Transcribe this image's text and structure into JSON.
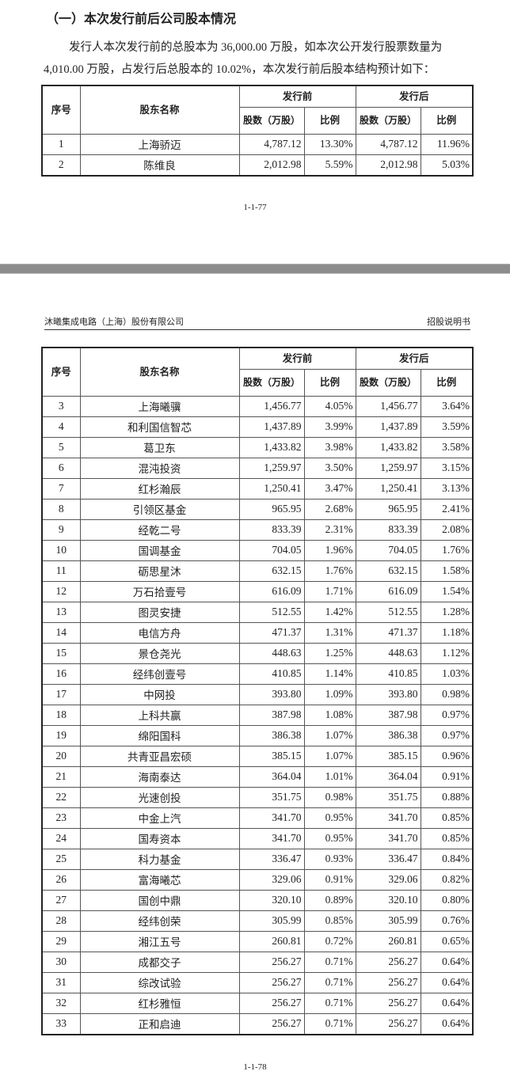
{
  "page1": {
    "section_title": "（一）本次发行前后公司股本情况",
    "paragraph_line1": "发行人本次发行前的总股本为 36,000.00 万股，如本次公开发行股票数量为",
    "paragraph_line2": "4,010.00 万股，占发行后总股本的 10.02%，本次发行前后股本结构预计如下：",
    "page_number": "1-1-77"
  },
  "page2": {
    "header_left": "沐曦集成电路（上海）股份有限公司",
    "header_right": "招股说明书",
    "page_number": "1-1-78"
  },
  "table_headers": {
    "seq": "序号",
    "name": "股东名称",
    "before": "发行前",
    "after": "发行后",
    "shares": "股数（万股）",
    "ratio": "比例"
  },
  "table1_rows": [
    [
      "1",
      "上海骄迈",
      "4,787.12",
      "13.30%",
      "4,787.12",
      "11.96%"
    ],
    [
      "2",
      "陈维良",
      "2,012.98",
      "5.59%",
      "2,012.98",
      "5.03%"
    ]
  ],
  "table2_rows": [
    [
      "3",
      "上海曦骥",
      "1,456.77",
      "4.05%",
      "1,456.77",
      "3.64%"
    ],
    [
      "4",
      "和利国信智芯",
      "1,437.89",
      "3.99%",
      "1,437.89",
      "3.59%"
    ],
    [
      "5",
      "葛卫东",
      "1,433.82",
      "3.98%",
      "1,433.82",
      "3.58%"
    ],
    [
      "6",
      "混沌投资",
      "1,259.97",
      "3.50%",
      "1,259.97",
      "3.15%"
    ],
    [
      "7",
      "红杉瀚辰",
      "1,250.41",
      "3.47%",
      "1,250.41",
      "3.13%"
    ],
    [
      "8",
      "引领区基金",
      "965.95",
      "2.68%",
      "965.95",
      "2.41%"
    ],
    [
      "9",
      "经乾二号",
      "833.39",
      "2.31%",
      "833.39",
      "2.08%"
    ],
    [
      "10",
      "国调基金",
      "704.05",
      "1.96%",
      "704.05",
      "1.76%"
    ],
    [
      "11",
      "砺思星沐",
      "632.15",
      "1.76%",
      "632.15",
      "1.58%"
    ],
    [
      "12",
      "万石拾壹号",
      "616.09",
      "1.71%",
      "616.09",
      "1.54%"
    ],
    [
      "13",
      "图灵安捷",
      "512.55",
      "1.42%",
      "512.55",
      "1.28%"
    ],
    [
      "14",
      "电信方舟",
      "471.37",
      "1.31%",
      "471.37",
      "1.18%"
    ],
    [
      "15",
      "景仓尧光",
      "448.63",
      "1.25%",
      "448.63",
      "1.12%"
    ],
    [
      "16",
      "经纬创壹号",
      "410.85",
      "1.14%",
      "410.85",
      "1.03%"
    ],
    [
      "17",
      "中网投",
      "393.80",
      "1.09%",
      "393.80",
      "0.98%"
    ],
    [
      "18",
      "上科共赢",
      "387.98",
      "1.08%",
      "387.98",
      "0.97%"
    ],
    [
      "19",
      "绵阳国科",
      "386.38",
      "1.07%",
      "386.38",
      "0.97%"
    ],
    [
      "20",
      "共青亚昌宏硕",
      "385.15",
      "1.07%",
      "385.15",
      "0.96%"
    ],
    [
      "21",
      "海南泰达",
      "364.04",
      "1.01%",
      "364.04",
      "0.91%"
    ],
    [
      "22",
      "光速创投",
      "351.75",
      "0.98%",
      "351.75",
      "0.88%"
    ],
    [
      "23",
      "中金上汽",
      "341.70",
      "0.95%",
      "341.70",
      "0.85%"
    ],
    [
      "24",
      "国寿资本",
      "341.70",
      "0.95%",
      "341.70",
      "0.85%"
    ],
    [
      "25",
      "科力基金",
      "336.47",
      "0.93%",
      "336.47",
      "0.84%"
    ],
    [
      "26",
      "富海曦芯",
      "329.06",
      "0.91%",
      "329.06",
      "0.82%"
    ],
    [
      "27",
      "国创中鼎",
      "320.10",
      "0.89%",
      "320.10",
      "0.80%"
    ],
    [
      "28",
      "经纬创荣",
      "305.99",
      "0.85%",
      "305.99",
      "0.76%"
    ],
    [
      "29",
      "湘江五号",
      "260.81",
      "0.72%",
      "260.81",
      "0.65%"
    ],
    [
      "30",
      "成都交子",
      "256.27",
      "0.71%",
      "256.27",
      "0.64%"
    ],
    [
      "31",
      "综改试验",
      "256.27",
      "0.71%",
      "256.27",
      "0.64%"
    ],
    [
      "32",
      "红杉雅恒",
      "256.27",
      "0.71%",
      "256.27",
      "0.64%"
    ],
    [
      "33",
      "正和启迪",
      "256.27",
      "0.71%",
      "256.27",
      "0.64%"
    ]
  ]
}
